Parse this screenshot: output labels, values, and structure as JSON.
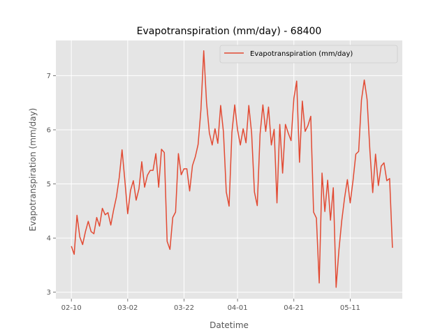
{
  "chart_data": {
    "type": "line",
    "title": "Evapotranspiration (mm/day) - 68400",
    "xlabel": "Datetime",
    "ylabel": "Evapotranspiration (mm/day)",
    "x_tick_labels": [
      "02-10",
      "03-02",
      "03-22",
      "04-01",
      "04-21",
      "05-11"
    ],
    "x_tick_positions_days": [
      0,
      20,
      40,
      59,
      79,
      99
    ],
    "y_ticks": [
      3,
      4,
      5,
      6,
      7
    ],
    "xlim_days": [
      -5.5,
      117.5
    ],
    "ylim": [
      2.88,
      7.65
    ],
    "grid": true,
    "legend_position": "top-right",
    "series": [
      {
        "name": "Evapotranspiration (mm/day)",
        "color": "#E24A33",
        "x_days": [
          0,
          1,
          2,
          3,
          4,
          5,
          6,
          7,
          8,
          9,
          10,
          11,
          12,
          13,
          14,
          15,
          16,
          17,
          18,
          19,
          20,
          21,
          22,
          23,
          24,
          25,
          26,
          27,
          28,
          29,
          30,
          31,
          32,
          33,
          34,
          35,
          36,
          37,
          38,
          39,
          40,
          41,
          42,
          43,
          44,
          45,
          46,
          47,
          48,
          49,
          50,
          51,
          52,
          53,
          54,
          55,
          56,
          57,
          58,
          59,
          60,
          61,
          62,
          63,
          64,
          65,
          66,
          67,
          68,
          69,
          70,
          71,
          72,
          73,
          74,
          75,
          76,
          77,
          78,
          79,
          80,
          81,
          82,
          83,
          84,
          85,
          86,
          87,
          88,
          89,
          90,
          91,
          92,
          93,
          94,
          95,
          96,
          97,
          98,
          99,
          100,
          101,
          102,
          103,
          104,
          105,
          106,
          107,
          108,
          109,
          110,
          111,
          112,
          113,
          114
        ],
        "values": [
          3.85,
          3.7,
          4.42,
          4.02,
          3.88,
          4.12,
          4.31,
          4.12,
          4.08,
          4.38,
          4.22,
          4.55,
          4.43,
          4.47,
          4.24,
          4.52,
          4.76,
          5.12,
          5.63,
          5.06,
          4.45,
          4.88,
          5.06,
          4.7,
          4.91,
          5.41,
          4.94,
          5.16,
          5.25,
          5.25,
          5.56,
          4.94,
          5.64,
          5.58,
          3.94,
          3.79,
          4.38,
          4.48,
          5.56,
          5.17,
          5.28,
          5.28,
          4.87,
          5.34,
          5.5,
          5.73,
          6.37,
          7.46,
          6.5,
          5.94,
          5.72,
          6.02,
          5.75,
          6.45,
          5.96,
          4.85,
          4.59,
          5.95,
          6.46,
          6.0,
          5.72,
          6.02,
          5.76,
          6.45,
          5.94,
          4.85,
          4.6,
          5.92,
          6.46,
          5.97,
          6.42,
          5.72,
          6.01,
          4.65,
          6.1,
          5.2,
          6.1,
          5.94,
          5.8,
          6.58,
          6.9,
          5.4,
          6.53,
          5.97,
          6.08,
          6.25,
          4.48,
          4.37,
          3.17,
          5.2,
          4.49,
          5.07,
          4.33,
          4.93,
          3.09,
          3.78,
          4.32,
          4.74,
          5.08,
          4.65,
          5.06,
          5.55,
          5.6,
          6.55,
          6.92,
          6.56,
          5.61,
          4.84,
          5.55,
          4.97,
          5.33,
          5.39,
          5.06,
          5.1,
          3.82
        ]
      }
    ]
  }
}
